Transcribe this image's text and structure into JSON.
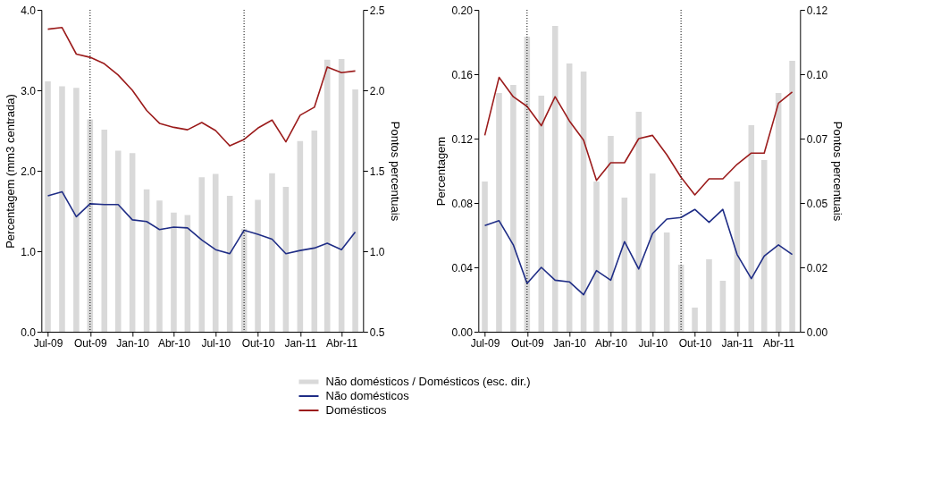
{
  "chart_data": [
    {
      "type": "line",
      "ylabel": "Percentagem (mm3 centrada)",
      "y2label": "Pontos percentuais",
      "legend": "bottom",
      "x": [
        "2009-07-15",
        "2009-08-15",
        "2009-09-15",
        "2009-10-15",
        "2009-11-15",
        "2009-12-15",
        "2010-01-15",
        "2010-02-15",
        "2010-03-15",
        "2010-04-15",
        "2010-05-15",
        "2010-06-15",
        "2010-07-15",
        "2010-08-15",
        "2010-09-15",
        "2010-10-15",
        "2010-11-15",
        "2010-12-15",
        "2011-01-15",
        "2011-02-15",
        "2011-03-15",
        "2011-04-15",
        "2011-05-15"
      ],
      "xlim": [
        "2009-07-01",
        "2011-06-01"
      ],
      "xticks": [
        {
          "value": "2009-07-15",
          "label": "Jul-09"
        },
        {
          "value": "2009-10-15",
          "label": "Out-09"
        },
        {
          "value": "2010-01-15",
          "label": "Jan-10"
        },
        {
          "value": "2010-04-15",
          "label": "Abr-10"
        },
        {
          "value": "2010-07-15",
          "label": "Jul-10"
        },
        {
          "value": "2010-10-15",
          "label": "Out-10"
        },
        {
          "value": "2011-01-15",
          "label": "Jan-11"
        },
        {
          "value": "2011-04-15",
          "label": "Abr-11"
        }
      ],
      "ylim": [
        0,
        4
      ],
      "yticks": [
        {
          "value": 0,
          "label": "0.0"
        },
        {
          "value": 1,
          "label": "1.0"
        },
        {
          "value": 2,
          "label": "2.0"
        },
        {
          "value": 3,
          "label": "3.0"
        },
        {
          "value": 4,
          "label": "4.0"
        }
      ],
      "y2lim": [
        0.5,
        2.5
      ],
      "y2ticks": [
        0.5,
        {
          "value": 1,
          "label": "1.0"
        },
        1.5,
        {
          "value": 2,
          "label": "2.0"
        },
        2.5
      ],
      "grid": false,
      "line_style": "solid",
      "marker": "none",
      "ref_lines": [
        {
          "axis": "x",
          "value": "2009-10-15",
          "line_style": "dotted",
          "color": "#000000"
        },
        {
          "axis": "x",
          "value": "2010-09-15",
          "line_style": "dotted",
          "color": "#000000"
        }
      ],
      "series": [
        {
          "name": "Não domésticos / Domésticos (esc. dir.)",
          "type": "bar",
          "axis": "y2",
          "color": "#d9d9d9",
          "values": [
            2.055,
            2.025,
            2.015,
            1.82,
            1.755,
            1.625,
            1.61,
            1.385,
            1.315,
            1.24,
            1.225,
            1.46,
            1.48,
            1.345,
            1.14,
            1.32,
            1.485,
            1.4,
            1.685,
            1.75,
            2.19,
            2.195,
            2.005
          ]
        },
        {
          "name": "Não domésticos",
          "color": "#1f2d86",
          "values": [
            1.69,
            1.74,
            1.43,
            1.59,
            1.58,
            1.58,
            1.39,
            1.37,
            1.27,
            1.3,
            1.29,
            1.14,
            1.02,
            0.97,
            1.26,
            1.21,
            1.15,
            0.97,
            1.01,
            1.04,
            1.1,
            1.02,
            1.24
          ]
        },
        {
          "name": "Domésticos",
          "color": "#9b1b1b",
          "values": [
            3.76,
            3.78,
            3.45,
            3.41,
            3.33,
            3.19,
            3.0,
            2.75,
            2.59,
            2.54,
            2.51,
            2.6,
            2.5,
            2.31,
            2.39,
            2.53,
            2.63,
            2.36,
            2.69,
            2.79,
            3.29,
            3.22,
            3.24
          ]
        }
      ]
    },
    {
      "type": "line",
      "ylabel": "Percentagem",
      "y2label": "Pontos percentuais",
      "x": [
        "2009-07-15",
        "2009-08-15",
        "2009-09-15",
        "2009-10-15",
        "2009-11-15",
        "2009-12-15",
        "2010-01-15",
        "2010-02-15",
        "2010-03-15",
        "2010-04-15",
        "2010-05-15",
        "2010-06-15",
        "2010-07-15",
        "2010-08-15",
        "2010-09-15",
        "2010-10-15",
        "2010-11-15",
        "2010-12-15",
        "2011-01-15",
        "2011-02-15",
        "2011-03-15",
        "2011-04-15",
        "2011-05-15"
      ],
      "xlim": [
        "2009-07-01",
        "2011-06-01"
      ],
      "xticks": [
        {
          "value": "2009-07-15",
          "label": "Jul-09"
        },
        {
          "value": "2009-10-15",
          "label": "Out-09"
        },
        {
          "value": "2010-01-15",
          "label": "Jan-10"
        },
        {
          "value": "2010-04-15",
          "label": "Abr-10"
        },
        {
          "value": "2010-07-15",
          "label": "Jul-10"
        },
        {
          "value": "2010-10-15",
          "label": "Out-10"
        },
        {
          "value": "2011-01-15",
          "label": "Jan-11"
        },
        {
          "value": "2011-04-15",
          "label": "Abr-11"
        }
      ],
      "ylim": [
        0,
        0.2
      ],
      "yticks": [
        {
          "value": 0,
          "label": "0.00"
        },
        0.04,
        0.08,
        0.12,
        0.16,
        {
          "value": 0.2,
          "label": "0.20"
        }
      ],
      "y2lim": [
        0,
        0.12
      ],
      "y2ticks": [
        {
          "value": 0,
          "label": "0.00"
        },
        {
          "value": 0.024,
          "label": "0.02"
        },
        {
          "value": 0.048,
          "label": "0.05"
        },
        {
          "value": 0.072,
          "label": "0.07"
        },
        {
          "value": 0.096,
          "label": "0.10"
        },
        {
          "value": 0.12,
          "label": "0.12"
        }
      ],
      "grid": false,
      "line_style": "solid",
      "marker": "none",
      "ref_lines": [
        {
          "axis": "x",
          "value": "2009-10-15",
          "line_style": "dotted",
          "color": "#000000"
        },
        {
          "axis": "x",
          "value": "2010-09-15",
          "line_style": "dotted",
          "color": "#000000"
        }
      ],
      "series": [
        {
          "type": "bar",
          "axis": "y2",
          "color": "#d9d9d9",
          "values": [
            0.056,
            0.089,
            0.092,
            0.11,
            0.088,
            0.114,
            0.1,
            0.097,
            0.056,
            0.073,
            0.05,
            0.082,
            0.059,
            0.037,
            0.025,
            0.009,
            0.027,
            0.019,
            0.056,
            0.077,
            0.064,
            0.089,
            0.101
          ]
        },
        {
          "color": "#1f2d86",
          "values": [
            0.066,
            0.069,
            0.054,
            0.03,
            0.04,
            0.032,
            0.031,
            0.023,
            0.038,
            0.032,
            0.056,
            0.039,
            0.061,
            0.07,
            0.071,
            0.076,
            0.068,
            0.076,
            0.048,
            0.033,
            0.047,
            0.054,
            0.048
          ]
        },
        {
          "color": "#9b1b1b",
          "values": [
            0.122,
            0.158,
            0.146,
            0.14,
            0.128,
            0.146,
            0.131,
            0.119,
            0.094,
            0.105,
            0.105,
            0.12,
            0.122,
            0.11,
            0.096,
            0.085,
            0.095,
            0.095,
            0.104,
            0.111,
            0.111,
            0.142,
            0.149
          ]
        }
      ]
    }
  ]
}
